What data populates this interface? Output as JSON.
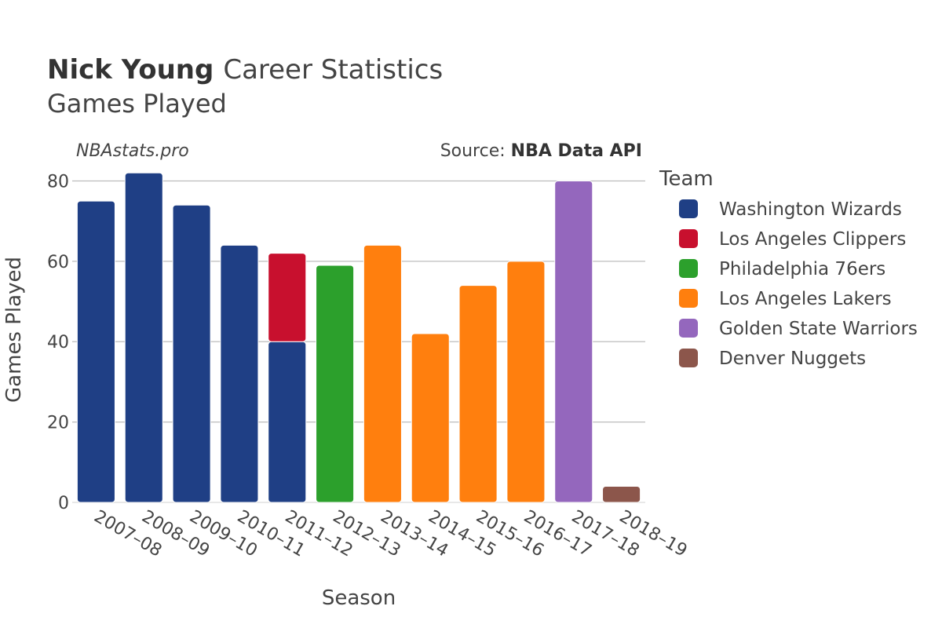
{
  "header": {
    "player_name": "Nick Young",
    "title_rest": "Career Statistics",
    "subtitle": "Games Played",
    "credit": "NBAstats.pro",
    "source_prefix": "Source: ",
    "source_name": "NBA Data API"
  },
  "legend": {
    "title": "Team",
    "items": [
      {
        "label": "Washington Wizards",
        "color": "#1f3f85"
      },
      {
        "label": "Los Angeles Clippers",
        "color": "#c8102e"
      },
      {
        "label": "Philadelphia 76ers",
        "color": "#2ca02c"
      },
      {
        "label": "Los Angeles Lakers",
        "color": "#ff7f0e"
      },
      {
        "label": "Golden State Warriors",
        "color": "#9467bd"
      },
      {
        "label": "Denver Nuggets",
        "color": "#8c564b"
      }
    ]
  },
  "chart_data": {
    "type": "bar",
    "stacked": true,
    "xlabel": "Season",
    "ylabel": "Games Played",
    "ylim": [
      0,
      84
    ],
    "yticks": [
      0,
      20,
      40,
      60,
      80
    ],
    "grid": true,
    "legend_position": "right",
    "categories": [
      "2007–08",
      "2008–09",
      "2009–10",
      "2010–11",
      "2011–12",
      "2012–13",
      "2013–14",
      "2014–15",
      "2015–16",
      "2016–17",
      "2017–18",
      "2018–19"
    ],
    "series": [
      {
        "name": "Washington Wizards",
        "color": "#1f3f85",
        "values": [
          75,
          82,
          74,
          64,
          40,
          0,
          0,
          0,
          0,
          0,
          0,
          0
        ]
      },
      {
        "name": "Los Angeles Clippers",
        "color": "#c8102e",
        "values": [
          0,
          0,
          0,
          0,
          22,
          0,
          0,
          0,
          0,
          0,
          0,
          0
        ]
      },
      {
        "name": "Philadelphia 76ers",
        "color": "#2ca02c",
        "values": [
          0,
          0,
          0,
          0,
          0,
          59,
          0,
          0,
          0,
          0,
          0,
          0
        ]
      },
      {
        "name": "Los Angeles Lakers",
        "color": "#ff7f0e",
        "values": [
          0,
          0,
          0,
          0,
          0,
          0,
          64,
          42,
          54,
          60,
          0,
          0
        ]
      },
      {
        "name": "Golden State Warriors",
        "color": "#9467bd",
        "values": [
          0,
          0,
          0,
          0,
          0,
          0,
          0,
          0,
          0,
          0,
          80,
          0
        ]
      },
      {
        "name": "Denver Nuggets",
        "color": "#8c564b",
        "values": [
          0,
          0,
          0,
          0,
          0,
          0,
          0,
          0,
          0,
          0,
          0,
          4
        ]
      }
    ]
  }
}
